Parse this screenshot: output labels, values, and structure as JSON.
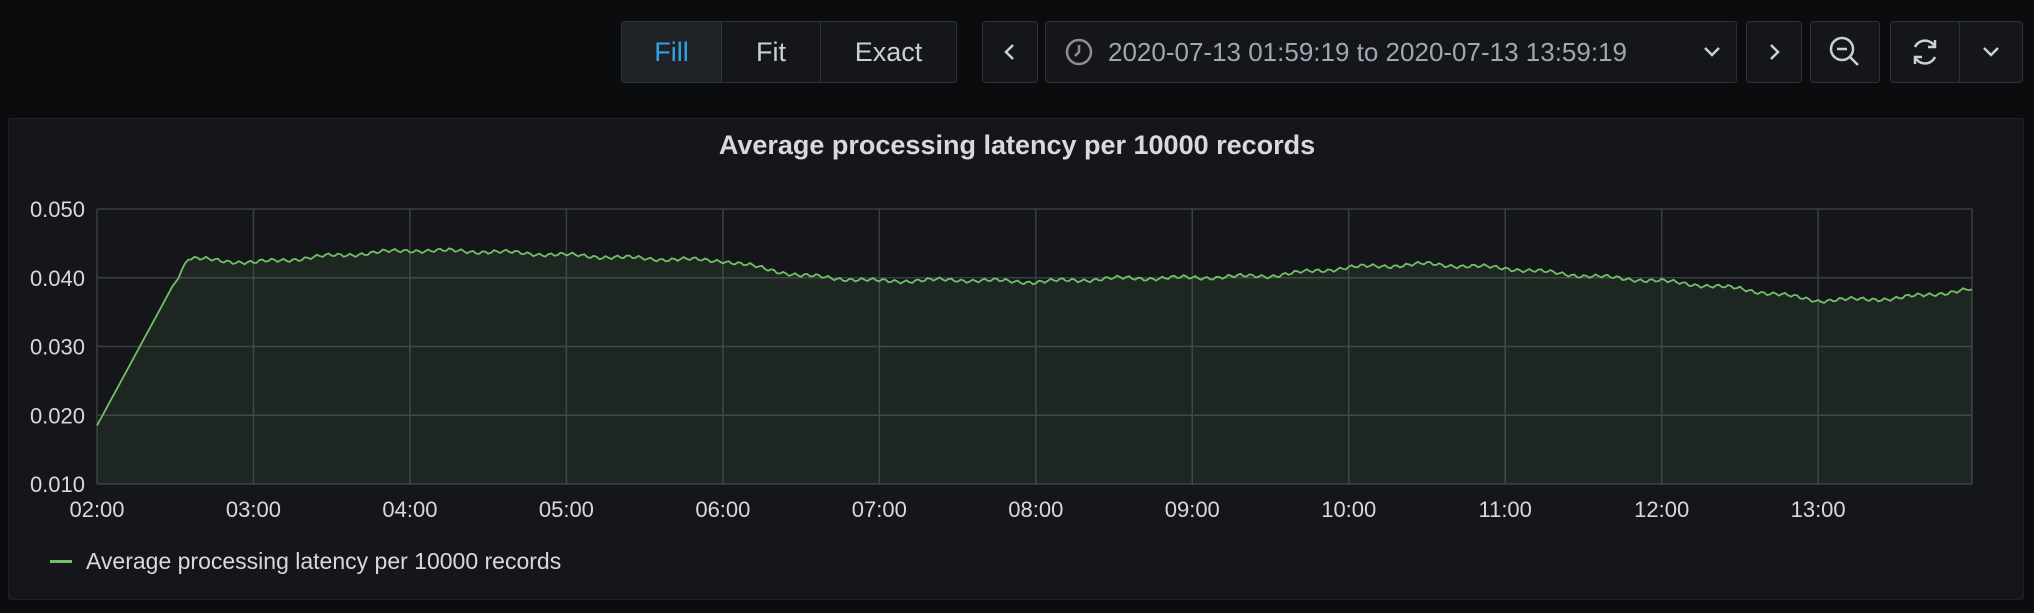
{
  "toolbar": {
    "fill_label": "Fill",
    "fit_label": "Fit",
    "exact_label": "Exact",
    "time_range": "2020-07-13 01:59:19 to 2020-07-13 13:59:19",
    "prev_icon": "chevron-left-icon",
    "next_icon": "chevron-right-icon",
    "zoom_icon": "zoom-out-icon",
    "refresh_icon": "refresh-icon",
    "dropdown_icon": "chevron-down-icon",
    "clock_icon": "clock-icon"
  },
  "colors": {
    "background": "#0b0c0e",
    "panel": "#141619",
    "series": "#73bf69",
    "active": "#33a2e5"
  },
  "chart_data": {
    "type": "area",
    "title": "Average processing latency per 10000 records",
    "ylim": [
      0.01,
      0.05
    ],
    "yticks": [
      "0.010",
      "0.020",
      "0.030",
      "0.040",
      "0.050"
    ],
    "xticks": [
      "02:00",
      "03:00",
      "04:00",
      "05:00",
      "06:00",
      "07:00",
      "08:00",
      "09:00",
      "10:00",
      "11:00",
      "12:00",
      "13:00"
    ],
    "grid": true,
    "legend_position": "bottom-left",
    "series": [
      {
        "name": "Average processing latency per 10000 records",
        "x": [
          "02:00",
          "02:15",
          "02:30",
          "02:35",
          "03:00",
          "03:30",
          "04:00",
          "04:30",
          "05:00",
          "05:30",
          "06:00",
          "06:30",
          "07:00",
          "07:30",
          "08:00",
          "08:30",
          "09:00",
          "09:30",
          "10:00",
          "10:30",
          "11:00",
          "11:30",
          "12:00",
          "12:30",
          "13:00",
          "13:30",
          "13:59"
        ],
        "values": [
          0.0185,
          0.029,
          0.0395,
          0.0428,
          0.0422,
          0.0432,
          0.044,
          0.0438,
          0.0433,
          0.0428,
          0.0425,
          0.0403,
          0.0395,
          0.0397,
          0.0394,
          0.0399,
          0.04,
          0.0403,
          0.0415,
          0.042,
          0.0414,
          0.0403,
          0.0395,
          0.0384,
          0.0367,
          0.037,
          0.0383
        ]
      }
    ]
  }
}
